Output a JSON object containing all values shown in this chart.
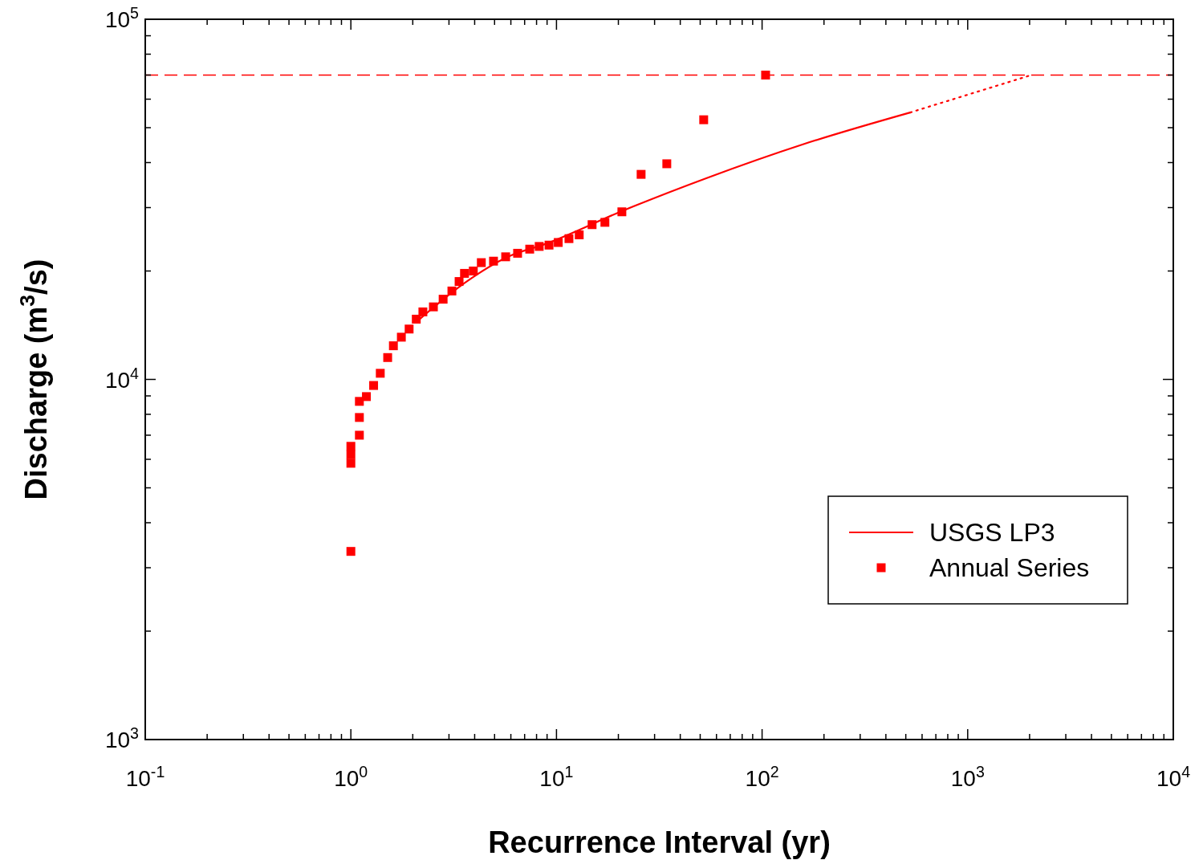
{
  "chart_data": {
    "type": "scatter",
    "xlabel": "Recurrence Interval (yr)",
    "ylabel": "Discharge (m$^{3}$/s)",
    "log": "xy",
    "xlim": [
      0.1,
      10000
    ],
    "ylim": [
      1000,
      100000
    ],
    "xticks": [
      {
        "value": 0.1,
        "label": "10$^{-1}$"
      },
      {
        "value": 0.2,
        "label": null
      },
      {
        "value": 0.3,
        "label": null
      },
      {
        "value": 0.4,
        "label": null
      },
      {
        "value": 0.5,
        "label": null
      },
      {
        "value": 0.6,
        "label": null
      },
      {
        "value": 0.7,
        "label": null
      },
      {
        "value": 0.8,
        "label": null
      },
      {
        "value": 0.9,
        "label": null
      },
      {
        "value": 1,
        "label": "10$^{0}$"
      },
      {
        "value": 2,
        "label": null
      },
      {
        "value": 3,
        "label": null
      },
      {
        "value": 4,
        "label": null
      },
      {
        "value": 5,
        "label": null
      },
      {
        "value": 6,
        "label": null
      },
      {
        "value": 7,
        "label": null
      },
      {
        "value": 8,
        "label": null
      },
      {
        "value": 9,
        "label": null
      },
      {
        "value": 10,
        "label": "10$^{1}$"
      },
      {
        "value": 20,
        "label": null
      },
      {
        "value": 30,
        "label": null
      },
      {
        "value": 40,
        "label": null
      },
      {
        "value": 50,
        "label": null
      },
      {
        "value": 60,
        "label": null
      },
      {
        "value": 70,
        "label": null
      },
      {
        "value": 80,
        "label": null
      },
      {
        "value": 90,
        "label": null
      },
      {
        "value": 100,
        "label": "10$^{2}$"
      },
      {
        "value": 200,
        "label": null
      },
      {
        "value": 300,
        "label": null
      },
      {
        "value": 400,
        "label": null
      },
      {
        "value": 500,
        "label": null
      },
      {
        "value": 600,
        "label": null
      },
      {
        "value": 700,
        "label": null
      },
      {
        "value": 800,
        "label": null
      },
      {
        "value": 900,
        "label": null
      },
      {
        "value": 1000,
        "label": "10$^{3}$"
      },
      {
        "value": 2000,
        "label": null
      },
      {
        "value": 3000,
        "label": null
      },
      {
        "value": 4000,
        "label": null
      },
      {
        "value": 5000,
        "label": null
      },
      {
        "value": 6000,
        "label": null
      },
      {
        "value": 7000,
        "label": null
      },
      {
        "value": 8000,
        "label": null
      },
      {
        "value": 9000,
        "label": null
      },
      {
        "value": 10000,
        "label": "10$^{4}$"
      }
    ],
    "yticks": [
      {
        "value": 1000,
        "label": "10$^{3}$"
      },
      {
        "value": 2000,
        "label": null
      },
      {
        "value": 3000,
        "label": null
      },
      {
        "value": 4000,
        "label": null
      },
      {
        "value": 5000,
        "label": null
      },
      {
        "value": 6000,
        "label": null
      },
      {
        "value": 7000,
        "label": null
      },
      {
        "value": 8000,
        "label": null
      },
      {
        "value": 9000,
        "label": null
      },
      {
        "value": 10000,
        "label": "10$^{4}$"
      },
      {
        "value": 20000,
        "label": null
      },
      {
        "value": 30000,
        "label": null
      },
      {
        "value": 40000,
        "label": null
      },
      {
        "value": 50000,
        "label": null
      },
      {
        "value": 60000,
        "label": null
      },
      {
        "value": 70000,
        "label": null
      },
      {
        "value": 80000,
        "label": null
      },
      {
        "value": 90000,
        "label": null
      },
      {
        "value": 100000,
        "label": "10$^{5}$"
      }
    ],
    "grid": false,
    "legend": "right",
    "ref_lines": [
      {
        "axis": "y",
        "value": 70000,
        "color": "#ff0000",
        "line_style": "dashed"
      }
    ],
    "series": [
      {
        "name": "USGS LP3",
        "type": "line",
        "color": "#ff0000",
        "marker": "none",
        "line_style": "solid",
        "x": [
          2.1,
          3.61,
          5.81,
          8.87,
          21,
          53.5,
          157,
          525
        ],
        "values": [
          14500,
          18600,
          21900,
          23800,
          29400,
          36200,
          44900,
          55100
        ]
      },
      {
        "type": "line",
        "color": "#ff0000",
        "marker": "none",
        "line_style": "dotted",
        "x": [
          525,
          2040
        ],
        "values": [
          55100,
          70000
        ]
      },
      {
        "name": "Annual Series",
        "color": "#ff0000",
        "marker": "square",
        "x": [
          1,
          1,
          1,
          1,
          1.1,
          1.1,
          1.1,
          1.19,
          1.29,
          1.39,
          1.51,
          1.61,
          1.76,
          1.92,
          2.08,
          2.24,
          2.52,
          2.81,
          3.1,
          3.36,
          3.57,
          3.94,
          4.31,
          4.94,
          5.66,
          6.47,
          7.41,
          8.24,
          9.2,
          10.2,
          11.5,
          12.9,
          14.9,
          17.2,
          20.8,
          25.8,
          34.4,
          52,
          104
        ],
        "values": [
          3330,
          5850,
          6180,
          6520,
          7000,
          7840,
          8690,
          8960,
          9620,
          10400,
          11500,
          12400,
          13100,
          13800,
          14700,
          15400,
          15900,
          16700,
          17600,
          18700,
          19700,
          20000,
          21100,
          21300,
          21900,
          22400,
          23000,
          23400,
          23600,
          24000,
          24600,
          25200,
          26900,
          27300,
          29200,
          37100,
          39700,
          52600,
          70000
        ]
      }
    ]
  }
}
